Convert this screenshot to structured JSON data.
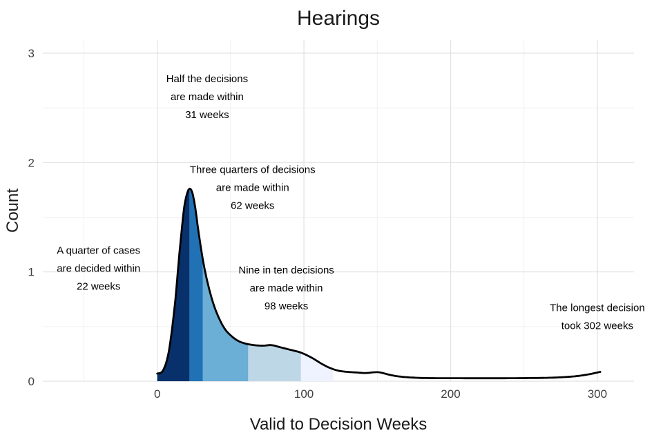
{
  "chart_data": {
    "type": "area",
    "title": "Hearings",
    "xlabel": "Valid to Decision Weeks",
    "ylabel": "Count",
    "xlim": [
      -78,
      325
    ],
    "ylim": [
      0,
      3.12
    ],
    "x_ticks": [
      0,
      100,
      200,
      300
    ],
    "y_ticks": [
      0,
      1,
      2,
      3
    ],
    "x_minor": [
      -50,
      50,
      150,
      250
    ],
    "y_minor": [
      0.5,
      1.5,
      2.5
    ],
    "grid": true,
    "background": "#ffffff",
    "curve_color": "#000000",
    "major_grid_color": "#e2e2e2",
    "minor_grid_color": "#f0f0f0",
    "summary": {
      "quarter_weeks": 22,
      "median_weeks": 31,
      "three_quarter_weeks": 62,
      "nine_in_ten_weeks": 98,
      "longest_weeks": 302
    },
    "quantile_regions": [
      {
        "name": "first-quartile",
        "from": 0,
        "to": 22,
        "color": "#08306b"
      },
      {
        "name": "median-band",
        "from": 22,
        "to": 31,
        "color": "#2171b5"
      },
      {
        "name": "third-quartile",
        "from": 31,
        "to": 62,
        "color": "#6baed6"
      },
      {
        "name": "ninth-decile",
        "from": 62,
        "to": 98,
        "color": "#bdd7e7"
      },
      {
        "name": "upper-tail",
        "from": 98,
        "to": 120,
        "color": "#eff3ff"
      }
    ],
    "annotations": [
      {
        "name": "quarter",
        "lines": [
          "A quarter of cases",
          "are decided within",
          "22 weeks"
        ],
        "x": -40,
        "y": 1.0
      },
      {
        "name": "half",
        "lines": [
          "Half the decisions",
          "are made within",
          "31 weeks"
        ],
        "x": 34,
        "y": 2.57
      },
      {
        "name": "three-quarters",
        "lines": [
          "Three quarters of decisions",
          "are made within",
          "62 weeks"
        ],
        "x": 65,
        "y": 1.74
      },
      {
        "name": "nine-in-ten",
        "lines": [
          "Nine in ten decisions",
          "are made within",
          "98 weeks"
        ],
        "x": 88,
        "y": 0.82
      },
      {
        "name": "longest",
        "lines": [
          "The longest decision",
          "took 302 weeks"
        ],
        "x": 300,
        "y": 0.56
      }
    ],
    "density_points": [
      [
        0,
        0.07
      ],
      [
        4,
        0.1
      ],
      [
        8,
        0.28
      ],
      [
        12,
        0.7
      ],
      [
        15,
        1.15
      ],
      [
        18,
        1.55
      ],
      [
        20,
        1.7
      ],
      [
        22,
        1.76
      ],
      [
        24,
        1.72
      ],
      [
        26,
        1.58
      ],
      [
        28,
        1.38
      ],
      [
        31,
        1.12
      ],
      [
        34,
        0.92
      ],
      [
        38,
        0.72
      ],
      [
        42,
        0.58
      ],
      [
        46,
        0.48
      ],
      [
        50,
        0.42
      ],
      [
        55,
        0.37
      ],
      [
        60,
        0.345
      ],
      [
        66,
        0.33
      ],
      [
        72,
        0.325
      ],
      [
        78,
        0.33
      ],
      [
        84,
        0.31
      ],
      [
        90,
        0.29
      ],
      [
        96,
        0.27
      ],
      [
        100,
        0.25
      ],
      [
        106,
        0.21
      ],
      [
        112,
        0.16
      ],
      [
        118,
        0.12
      ],
      [
        124,
        0.095
      ],
      [
        130,
        0.085
      ],
      [
        136,
        0.08
      ],
      [
        142,
        0.075
      ],
      [
        148,
        0.082
      ],
      [
        152,
        0.08
      ],
      [
        158,
        0.06
      ],
      [
        164,
        0.045
      ],
      [
        172,
        0.035
      ],
      [
        180,
        0.03
      ],
      [
        190,
        0.028
      ],
      [
        200,
        0.028
      ],
      [
        215,
        0.027
      ],
      [
        230,
        0.027
      ],
      [
        245,
        0.028
      ],
      [
        260,
        0.03
      ],
      [
        270,
        0.033
      ],
      [
        280,
        0.04
      ],
      [
        288,
        0.05
      ],
      [
        295,
        0.065
      ],
      [
        300,
        0.08
      ],
      [
        302,
        0.085
      ]
    ]
  }
}
